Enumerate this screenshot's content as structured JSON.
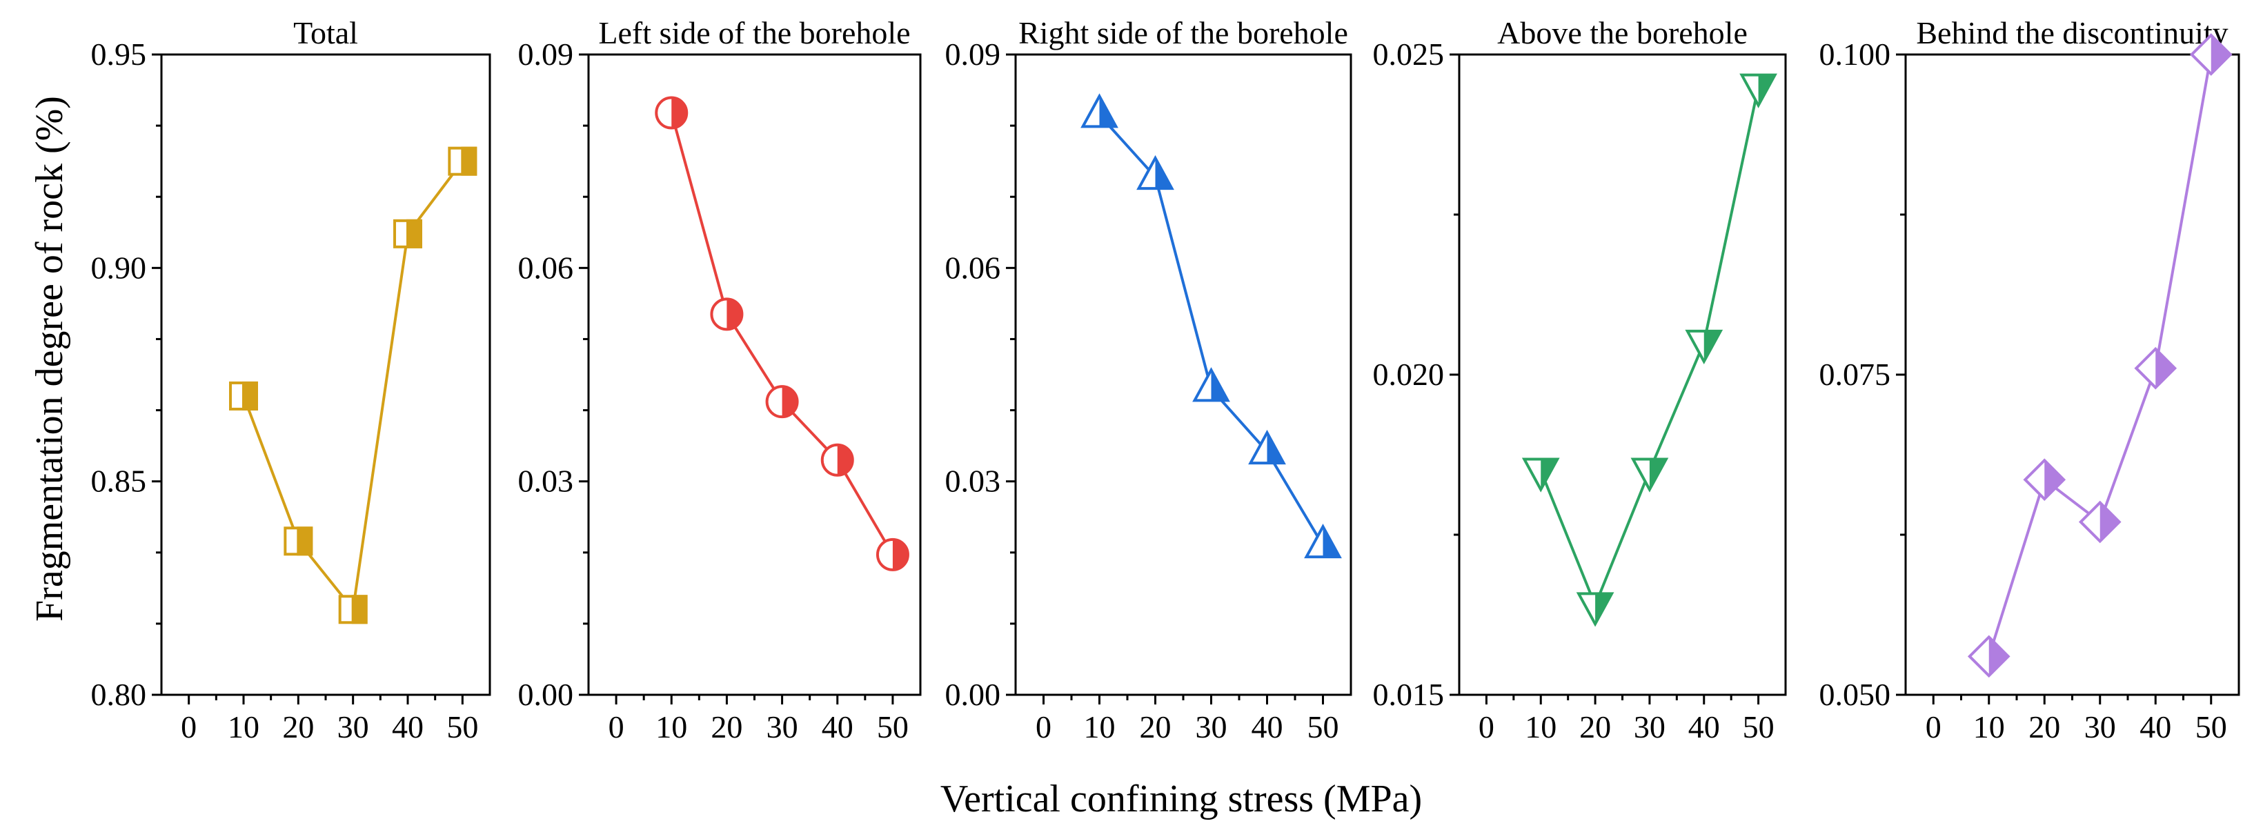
{
  "figure": {
    "ylabel": "Fragmentation degree of rock (%)",
    "xlabel": "Vertical confining stress (MPa)"
  },
  "chart_data": [
    {
      "type": "line",
      "title": "Total",
      "color": "#d4a017",
      "marker": "square-left-half",
      "x": [
        10,
        20,
        30,
        40,
        50
      ],
      "y": [
        0.87,
        0.836,
        0.82,
        0.908,
        0.925
      ],
      "xlim": [
        -5,
        55
      ],
      "xticks": [
        0,
        10,
        20,
        30,
        40,
        50
      ],
      "ylim": [
        0.8,
        0.95
      ],
      "yticks": [
        "0.80",
        "0.85",
        "0.90",
        "0.95"
      ],
      "yminor": 3
    },
    {
      "type": "line",
      "title": "Left side of the borehole",
      "color": "#e8413c",
      "marker": "circle-right-half",
      "x": [
        10,
        20,
        30,
        40,
        50
      ],
      "y": [
        0.0818,
        0.0535,
        0.0412,
        0.033,
        0.0197
      ],
      "xlim": [
        -5,
        55
      ],
      "xticks": [
        0,
        10,
        20,
        30,
        40,
        50
      ],
      "ylim": [
        0.0,
        0.09
      ],
      "yticks": [
        "0.00",
        "0.03",
        "0.06",
        "0.09"
      ],
      "yminor": 3
    },
    {
      "type": "line",
      "title": "Right side of the borehole",
      "color": "#1f6fd8",
      "marker": "triangle-up-right-half",
      "x": [
        10,
        20,
        30,
        40,
        50
      ],
      "y": [
        0.0815,
        0.0728,
        0.043,
        0.0342,
        0.021
      ],
      "xlim": [
        -5,
        55
      ],
      "xticks": [
        0,
        10,
        20,
        30,
        40,
        50
      ],
      "ylim": [
        0.0,
        0.09
      ],
      "yticks": [
        "0.00",
        "0.03",
        "0.06",
        "0.09"
      ],
      "yminor": 3
    },
    {
      "type": "line",
      "title": "Above the borehole",
      "color": "#2ca462",
      "marker": "triangle-down-right-half",
      "x": [
        10,
        20,
        30,
        40,
        50
      ],
      "y": [
        0.0185,
        0.0164,
        0.0185,
        0.0205,
        0.0245
      ],
      "xlim": [
        -5,
        55
      ],
      "xticks": [
        0,
        10,
        20,
        30,
        40,
        50
      ],
      "ylim": [
        0.015,
        0.025
      ],
      "yticks": [
        "0.015",
        "0.020",
        "0.025"
      ],
      "yminor": 2
    },
    {
      "type": "line",
      "title": "Behind the discontinuity",
      "color": "#b07ee0",
      "marker": "diamond-right-half",
      "x": [
        10,
        20,
        30,
        40,
        50
      ],
      "y": [
        0.053,
        0.0668,
        0.0635,
        0.0755,
        0.1
      ],
      "xlim": [
        -5,
        55
      ],
      "xticks": [
        0,
        10,
        20,
        30,
        40,
        50
      ],
      "ylim": [
        0.05,
        0.1
      ],
      "yticks": [
        "0.050",
        "0.075",
        "0.100"
      ],
      "yminor": 2
    }
  ]
}
